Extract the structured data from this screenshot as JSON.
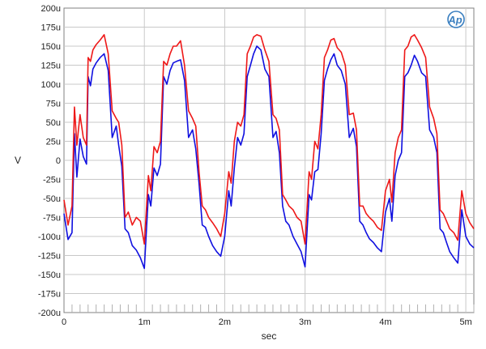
{
  "chart_data": {
    "type": "line",
    "title": "",
    "xlabel": "sec",
    "ylabel": "V",
    "xlim": [
      0,
      5.1
    ],
    "ylim": [
      -200,
      200
    ],
    "x_ticks": [
      0,
      1,
      2,
      3,
      4,
      5
    ],
    "x_tick_labels": [
      "0",
      "1m",
      "2m",
      "3m",
      "4m",
      "5m"
    ],
    "y_ticks": [
      200,
      175,
      150,
      125,
      100,
      75,
      50,
      25,
      0,
      -25,
      -50,
      -75,
      -100,
      -125,
      -150,
      -175,
      -200
    ],
    "y_tick_labels": [
      "200u",
      "175u",
      "150u",
      "125u",
      "100u",
      "75u",
      "50u",
      "25u",
      "0",
      "-25u",
      "-50u",
      "-75u",
      "-100u",
      "-125u",
      "-150u",
      "-175u",
      "-200u"
    ],
    "x_units": "ms",
    "y_units": "µV",
    "grid": true,
    "legend": "none",
    "logo_text": "Ap",
    "logo_color": "#3a7fc0",
    "series": [
      {
        "color": "#1010e0",
        "x": [
          0,
          0.05,
          0.1,
          0.13,
          0.16,
          0.2,
          0.24,
          0.28,
          0.3,
          0.33,
          0.36,
          0.4,
          0.45,
          0.5,
          0.55,
          0.6,
          0.65,
          0.68,
          0.72,
          0.76,
          0.8,
          0.85,
          0.9,
          0.95,
          1.0,
          1.05,
          1.08,
          1.12,
          1.16,
          1.2,
          1.24,
          1.28,
          1.32,
          1.36,
          1.4,
          1.45,
          1.5,
          1.55,
          1.6,
          1.64,
          1.68,
          1.72,
          1.76,
          1.8,
          1.85,
          1.9,
          1.95,
          2.0,
          2.05,
          2.08,
          2.12,
          2.16,
          2.2,
          2.24,
          2.28,
          2.32,
          2.36,
          2.4,
          2.45,
          2.5,
          2.55,
          2.6,
          2.64,
          2.68,
          2.72,
          2.76,
          2.8,
          2.85,
          2.9,
          2.95,
          3.0,
          3.05,
          3.08,
          3.12,
          3.16,
          3.2,
          3.24,
          3.28,
          3.32,
          3.36,
          3.4,
          3.45,
          3.5,
          3.55,
          3.6,
          3.64,
          3.68,
          3.72,
          3.76,
          3.8,
          3.85,
          3.9,
          3.95,
          4.0,
          4.05,
          4.08,
          4.12,
          4.16,
          4.2,
          4.24,
          4.28,
          4.32,
          4.36,
          4.4,
          4.45,
          4.5,
          4.55,
          4.6,
          4.64,
          4.68,
          4.72,
          4.76,
          4.8,
          4.85,
          4.9,
          4.95,
          5.0,
          5.05,
          5.1
        ],
        "values": [
          -70,
          -104,
          -95,
          35,
          -22,
          28,
          5,
          -5,
          110,
          98,
          120,
          128,
          135,
          140,
          118,
          30,
          45,
          20,
          -8,
          -90,
          -95,
          -112,
          -118,
          -128,
          -142,
          -45,
          -60,
          -10,
          -20,
          -5,
          110,
          100,
          118,
          128,
          130,
          132,
          105,
          30,
          40,
          15,
          -30,
          -85,
          -88,
          -100,
          -112,
          -120,
          -126,
          -100,
          -40,
          -60,
          -10,
          30,
          20,
          35,
          110,
          125,
          140,
          150,
          145,
          120,
          110,
          30,
          38,
          10,
          -60,
          -80,
          -85,
          -100,
          -110,
          -120,
          -140,
          -45,
          -52,
          -15,
          -12,
          35,
          105,
          120,
          132,
          140,
          125,
          118,
          100,
          30,
          42,
          18,
          -80,
          -85,
          -95,
          -103,
          -108,
          -115,
          -120,
          -68,
          -50,
          -80,
          -20,
          0,
          10,
          110,
          115,
          125,
          138,
          130,
          115,
          110,
          40,
          30,
          10,
          -90,
          -95,
          -108,
          -120,
          -128,
          -135,
          -65,
          -100,
          -110,
          -115
        ]
      },
      {
        "color": "#ee1818",
        "x": [
          0,
          0.05,
          0.1,
          0.13,
          0.16,
          0.2,
          0.24,
          0.28,
          0.3,
          0.33,
          0.36,
          0.4,
          0.45,
          0.5,
          0.55,
          0.6,
          0.65,
          0.68,
          0.72,
          0.76,
          0.8,
          0.85,
          0.9,
          0.95,
          1.0,
          1.05,
          1.08,
          1.12,
          1.16,
          1.2,
          1.24,
          1.28,
          1.32,
          1.36,
          1.4,
          1.45,
          1.5,
          1.55,
          1.6,
          1.64,
          1.68,
          1.72,
          1.76,
          1.8,
          1.85,
          1.9,
          1.95,
          2.0,
          2.05,
          2.08,
          2.12,
          2.16,
          2.2,
          2.24,
          2.28,
          2.32,
          2.36,
          2.4,
          2.45,
          2.5,
          2.55,
          2.6,
          2.64,
          2.68,
          2.72,
          2.76,
          2.8,
          2.85,
          2.9,
          2.95,
          3.0,
          3.05,
          3.08,
          3.12,
          3.16,
          3.2,
          3.24,
          3.28,
          3.32,
          3.36,
          3.4,
          3.45,
          3.5,
          3.55,
          3.6,
          3.64,
          3.68,
          3.72,
          3.76,
          3.8,
          3.85,
          3.9,
          3.95,
          4.0,
          4.05,
          4.08,
          4.12,
          4.16,
          4.2,
          4.24,
          4.28,
          4.32,
          4.36,
          4.4,
          4.45,
          4.5,
          4.55,
          4.6,
          4.64,
          4.68,
          4.72,
          4.76,
          4.8,
          4.85,
          4.9,
          4.95,
          5.0,
          5.05,
          5.1
        ],
        "values": [
          -52,
          -85,
          -60,
          70,
          20,
          60,
          30,
          20,
          135,
          130,
          145,
          152,
          158,
          165,
          140,
          65,
          55,
          50,
          20,
          -75,
          -68,
          -85,
          -75,
          -80,
          -110,
          -20,
          -40,
          18,
          10,
          25,
          130,
          125,
          140,
          150,
          150,
          157,
          125,
          65,
          55,
          45,
          -15,
          -60,
          -65,
          -75,
          -82,
          -90,
          -100,
          -70,
          -15,
          -30,
          25,
          50,
          45,
          60,
          140,
          150,
          162,
          165,
          163,
          145,
          130,
          60,
          55,
          40,
          -45,
          -52,
          -60,
          -65,
          -75,
          -80,
          -110,
          -15,
          -25,
          25,
          15,
          60,
          135,
          145,
          158,
          160,
          148,
          142,
          125,
          60,
          62,
          40,
          -60,
          -60,
          -70,
          -75,
          -80,
          -88,
          -92,
          -40,
          -25,
          -55,
          10,
          30,
          40,
          145,
          150,
          162,
          165,
          158,
          148,
          135,
          70,
          55,
          35,
          -65,
          -70,
          -80,
          -90,
          -95,
          -105,
          -40,
          -70,
          -82,
          -90
        ]
      }
    ]
  }
}
